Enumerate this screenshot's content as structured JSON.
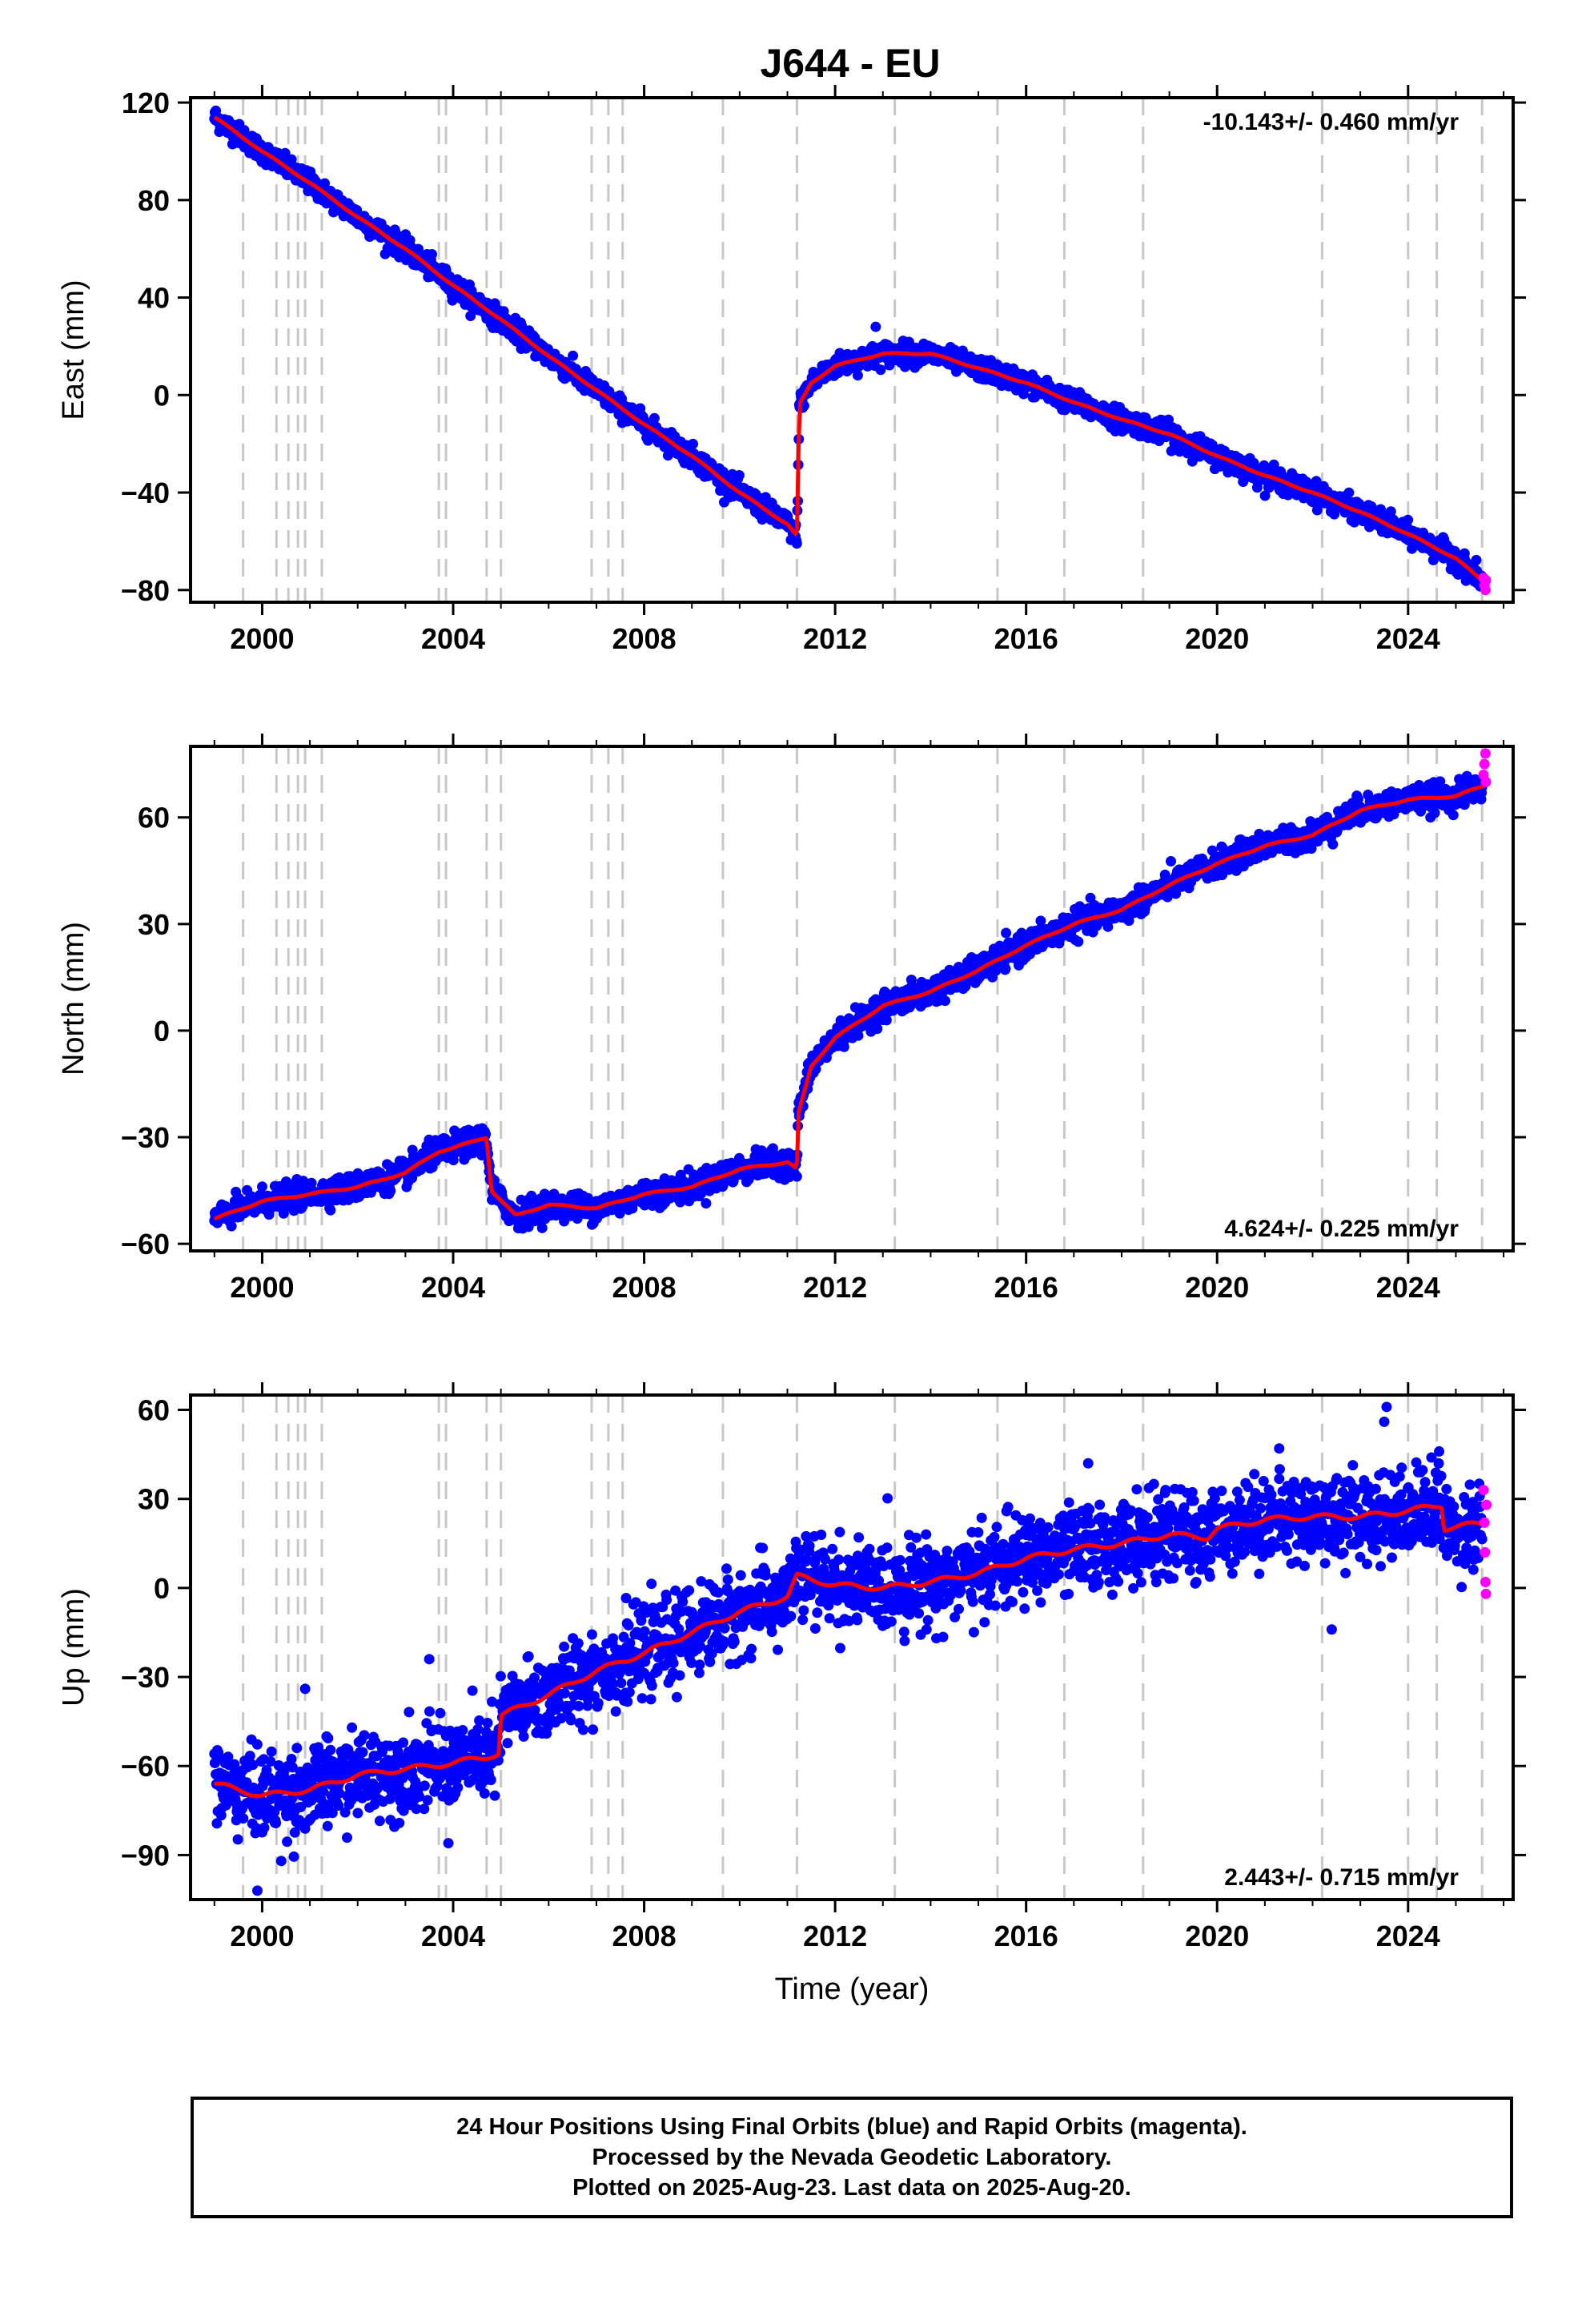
{
  "title": "J644 - EU",
  "colors": {
    "final": "#0000ff",
    "rapid": "#ff00ff",
    "model": "#ff0000",
    "steps": "#c8c8c8",
    "axis": "#000000"
  },
  "footer": {
    "line1": "24 Hour Positions Using Final Orbits (blue) and Rapid Orbits (magenta).",
    "line2": "Processed by the Nevada Geodetic Laboratory.",
    "line3": "Plotted on 2025-Aug-23. Last data on 2025-Aug-20."
  },
  "chart_data": [
    {
      "type": "scatter",
      "ylabel": "East (mm)",
      "xlabel": "",
      "rate": "-10.143+/- 0.460 mm/yr",
      "xlim": [
        1998.5,
        2026.2
      ],
      "ylim": [
        -85,
        122
      ],
      "xticks": [
        2000,
        2004,
        2008,
        2012,
        2016,
        2020,
        2024
      ],
      "yticks": [
        -80,
        -40,
        0,
        40,
        80,
        120
      ],
      "step_epochs": [
        1999.6,
        2000.3,
        2000.55,
        2000.75,
        2000.9,
        2001.25,
        2003.7,
        2003.85,
        2004.7,
        2005.0,
        2006.9,
        2007.25,
        2007.55,
        2009.65,
        2011.2,
        2013.25,
        2015.4,
        2016.8,
        2018.45,
        2022.2,
        2024.0,
        2024.6,
        2025.55
      ],
      "model_anchors": [
        [
          1999.0,
          114
        ],
        [
          2000.0,
          100
        ],
        [
          2001.0,
          87
        ],
        [
          2002.0,
          73
        ],
        [
          2003.0,
          60
        ],
        [
          2004.0,
          45
        ],
        [
          2005.0,
          31
        ],
        [
          2006.0,
          16
        ],
        [
          2007.0,
          2
        ],
        [
          2008.0,
          -12
        ],
        [
          2009.0,
          -25
        ],
        [
          2010.0,
          -40
        ],
        [
          2011.0,
          -53
        ],
        [
          2011.2,
          -58
        ],
        [
          2011.25,
          -4
        ],
        [
          2011.5,
          5
        ],
        [
          2012.0,
          12
        ],
        [
          2013.0,
          17
        ],
        [
          2014.0,
          17
        ],
        [
          2015.0,
          11
        ],
        [
          2016.0,
          5
        ],
        [
          2017.0,
          -3
        ],
        [
          2018.0,
          -10
        ],
        [
          2019.0,
          -16
        ],
        [
          2020.0,
          -25
        ],
        [
          2021.0,
          -33
        ],
        [
          2022.0,
          -40
        ],
        [
          2023.0,
          -48
        ],
        [
          2024.0,
          -57
        ],
        [
          2025.0,
          -67
        ],
        [
          2025.6,
          -77
        ]
      ],
      "scatter_sigma": 2.2,
      "outliers": [
        [
          2012.85,
          28
        ]
      ],
      "rapid_points": [
        [
          2025.58,
          -75
        ],
        [
          2025.6,
          -78
        ],
        [
          2025.62,
          -80
        ],
        [
          2025.63,
          -76
        ]
      ]
    },
    {
      "type": "scatter",
      "ylabel": "North (mm)",
      "xlabel": "",
      "rate": "4.624+/- 0.225 mm/yr",
      "xlim": [
        1998.5,
        2026.2
      ],
      "ylim": [
        -62,
        80
      ],
      "xticks": [
        2000,
        2004,
        2008,
        2012,
        2016,
        2020,
        2024
      ],
      "yticks": [
        -60,
        -30,
        0,
        30,
        60
      ],
      "step_epochs": [
        1999.6,
        2000.3,
        2000.55,
        2000.75,
        2000.9,
        2001.25,
        2003.7,
        2003.85,
        2004.7,
        2005.0,
        2006.9,
        2007.25,
        2007.55,
        2009.65,
        2011.2,
        2013.25,
        2015.4,
        2016.8,
        2018.45,
        2022.2,
        2024.0,
        2024.6,
        2025.55
      ],
      "model_anchors": [
        [
          1999.0,
          -53
        ],
        [
          2000.0,
          -48
        ],
        [
          2001.0,
          -46
        ],
        [
          2002.0,
          -44
        ],
        [
          2003.0,
          -40
        ],
        [
          2003.7,
          -34
        ],
        [
          2004.0,
          -33
        ],
        [
          2004.7,
          -30
        ],
        [
          2004.8,
          -45
        ],
        [
          2005.3,
          -52
        ],
        [
          2006.0,
          -49
        ],
        [
          2007.0,
          -50
        ],
        [
          2008.0,
          -46
        ],
        [
          2009.0,
          -44
        ],
        [
          2010.0,
          -39
        ],
        [
          2011.0,
          -37
        ],
        [
          2011.2,
          -39
        ],
        [
          2011.22,
          -24
        ],
        [
          2011.5,
          -10
        ],
        [
          2012.0,
          -2
        ],
        [
          2013.0,
          7
        ],
        [
          2014.0,
          11
        ],
        [
          2015.0,
          17
        ],
        [
          2016.0,
          24
        ],
        [
          2017.0,
          30
        ],
        [
          2018.0,
          34
        ],
        [
          2019.0,
          41
        ],
        [
          2020.0,
          47
        ],
        [
          2021.0,
          52
        ],
        [
          2022.0,
          55
        ],
        [
          2023.0,
          62
        ],
        [
          2024.0,
          65
        ],
        [
          2025.0,
          66
        ],
        [
          2025.6,
          69
        ]
      ],
      "scatter_sigma": 1.8,
      "outliers": [],
      "rapid_points": [
        [
          2025.58,
          72
        ],
        [
          2025.6,
          75
        ],
        [
          2025.62,
          78
        ],
        [
          2025.63,
          70
        ]
      ]
    },
    {
      "type": "scatter",
      "ylabel": "Up (mm)",
      "xlabel": "Time (year)",
      "rate": "2.443+/- 0.715 mm/yr",
      "xlim": [
        1998.5,
        2026.2
      ],
      "ylim": [
        -105,
        65
      ],
      "xticks": [
        2000,
        2004,
        2008,
        2012,
        2016,
        2020,
        2024
      ],
      "yticks": [
        -90,
        -60,
        -30,
        0,
        30,
        60
      ],
      "step_epochs": [
        1999.6,
        2000.3,
        2000.55,
        2000.75,
        2000.9,
        2001.25,
        2003.7,
        2003.85,
        2004.7,
        2005.0,
        2006.9,
        2007.25,
        2007.55,
        2009.65,
        2011.2,
        2013.25,
        2015.4,
        2016.8,
        2018.45,
        2022.2,
        2024.0,
        2024.6,
        2025.55
      ],
      "model_anchors": [
        [
          1999.0,
          -66
        ],
        [
          2000.0,
          -70
        ],
        [
          2001.0,
          -68
        ],
        [
          2002.0,
          -63
        ],
        [
          2003.0,
          -61
        ],
        [
          2004.0,
          -59
        ],
        [
          2004.95,
          -56
        ],
        [
          2005.0,
          -43
        ],
        [
          2006.0,
          -36
        ],
        [
          2007.0,
          -28
        ],
        [
          2008.0,
          -22
        ],
        [
          2009.0,
          -15
        ],
        [
          2010.0,
          -8
        ],
        [
          2011.0,
          -3
        ],
        [
          2011.2,
          4
        ],
        [
          2012.0,
          1
        ],
        [
          2013.0,
          0
        ],
        [
          2014.0,
          2
        ],
        [
          2015.0,
          5
        ],
        [
          2016.0,
          10
        ],
        [
          2017.0,
          13
        ],
        [
          2018.0,
          15
        ],
        [
          2019.0,
          18
        ],
        [
          2019.8,
          17
        ],
        [
          2020.0,
          20
        ],
        [
          2021.0,
          23
        ],
        [
          2022.0,
          24
        ],
        [
          2023.0,
          24
        ],
        [
          2024.0,
          26
        ],
        [
          2024.7,
          28
        ],
        [
          2024.75,
          20
        ],
        [
          2025.6,
          22
        ]
      ],
      "scatter_sigma": 7,
      "outliers": [
        [
          2023.55,
          61
        ],
        [
          2023.5,
          56
        ],
        [
          2022.4,
          -14
        ],
        [
          1999.9,
          -102
        ],
        [
          2000.4,
          -92
        ],
        [
          2003.9,
          -86
        ],
        [
          2000.9,
          -34
        ],
        [
          2003.5,
          -24
        ],
        [
          2017.3,
          42
        ],
        [
          2021.3,
          47
        ],
        [
          2024.65,
          46
        ]
      ],
      "rapid_points": [
        [
          2025.58,
          33
        ],
        [
          2025.6,
          22
        ],
        [
          2025.61,
          12
        ],
        [
          2025.62,
          2
        ],
        [
          2025.63,
          -2
        ],
        [
          2025.64,
          28
        ]
      ]
    }
  ]
}
